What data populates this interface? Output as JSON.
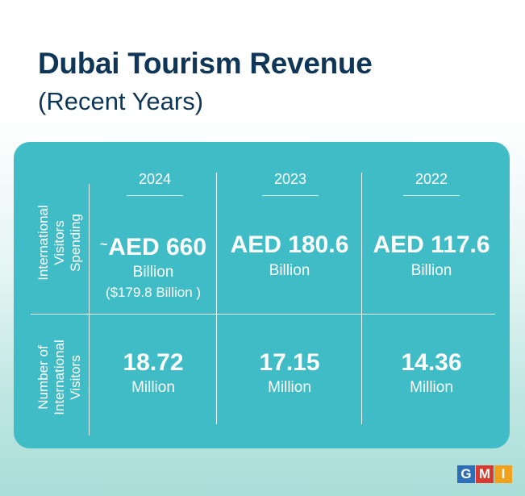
{
  "title": "Dubai Tourism Revenue",
  "subtitle": "(Recent Years)",
  "years": [
    "2024",
    "2023",
    "2022"
  ],
  "rows": [
    {
      "label": "International Visitors Spending",
      "cells": [
        {
          "prefix": "~",
          "value": "AED 660",
          "unit": "Billion",
          "note": "($179.8 Billion )"
        },
        {
          "prefix": "",
          "value": "AED 180.6",
          "unit": "Billion",
          "note": ""
        },
        {
          "prefix": "",
          "value": "AED 117.6",
          "unit": "Billion",
          "note": ""
        }
      ]
    },
    {
      "label": "Number of International Visitors",
      "cells": [
        {
          "value": "18.72",
          "unit": "Million"
        },
        {
          "value": "17.15",
          "unit": "Million"
        },
        {
          "value": "14.36",
          "unit": "Million"
        }
      ]
    }
  ],
  "logo": {
    "letters": [
      "G",
      "M",
      "I"
    ],
    "colors": [
      "#2d6fb7",
      "#d93a2f",
      "#f0a21f"
    ]
  },
  "colors": {
    "title": "#0f3656",
    "card": "#40bcc6",
    "text_on_card": "#ffffff"
  }
}
